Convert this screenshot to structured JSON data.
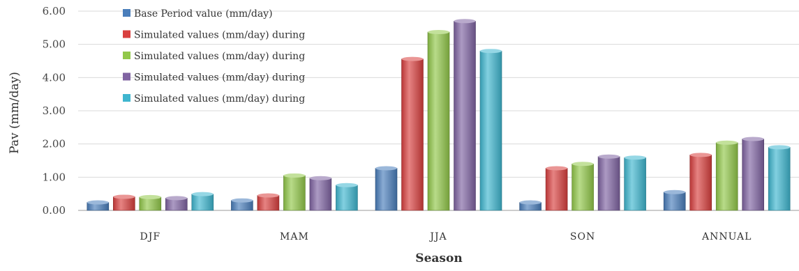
{
  "colors": {
    "series": [
      "#4a7ebb",
      "#d9403f",
      "#92c84a",
      "#8064a2",
      "#3fb6cf"
    ],
    "grid": "#d9d9d9",
    "axis": "#999999"
  },
  "chart_data": {
    "type": "bar",
    "title": "",
    "xlabel": "Season",
    "ylabel": "Pav (mm/day)",
    "ylim": [
      0,
      6
    ],
    "yticks": [
      "0.00",
      "1.00",
      "2.00",
      "3.00",
      "4.00",
      "5.00",
      "6.00"
    ],
    "grid": true,
    "legend_position": "top-left",
    "categories": [
      "DJF",
      "MAM",
      "JJA",
      "SON",
      "ANNUAL"
    ],
    "series": [
      {
        "name": "Base Period value (mm/day)",
        "values": [
          0.24,
          0.3,
          1.27,
          0.24,
          0.55
        ]
      },
      {
        "name": "Simulated values (mm/day) during",
        "values": [
          0.41,
          0.45,
          4.56,
          1.27,
          1.67
        ]
      },
      {
        "name": "Simulated values (mm/day) during",
        "values": [
          0.4,
          1.05,
          5.37,
          1.4,
          2.04
        ]
      },
      {
        "name": "Simulated values (mm/day) during",
        "values": [
          0.37,
          0.97,
          5.7,
          1.62,
          2.15
        ]
      },
      {
        "name": "Simulated values (mm/day) during",
        "values": [
          0.49,
          0.76,
          4.8,
          1.59,
          1.9
        ]
      }
    ]
  }
}
